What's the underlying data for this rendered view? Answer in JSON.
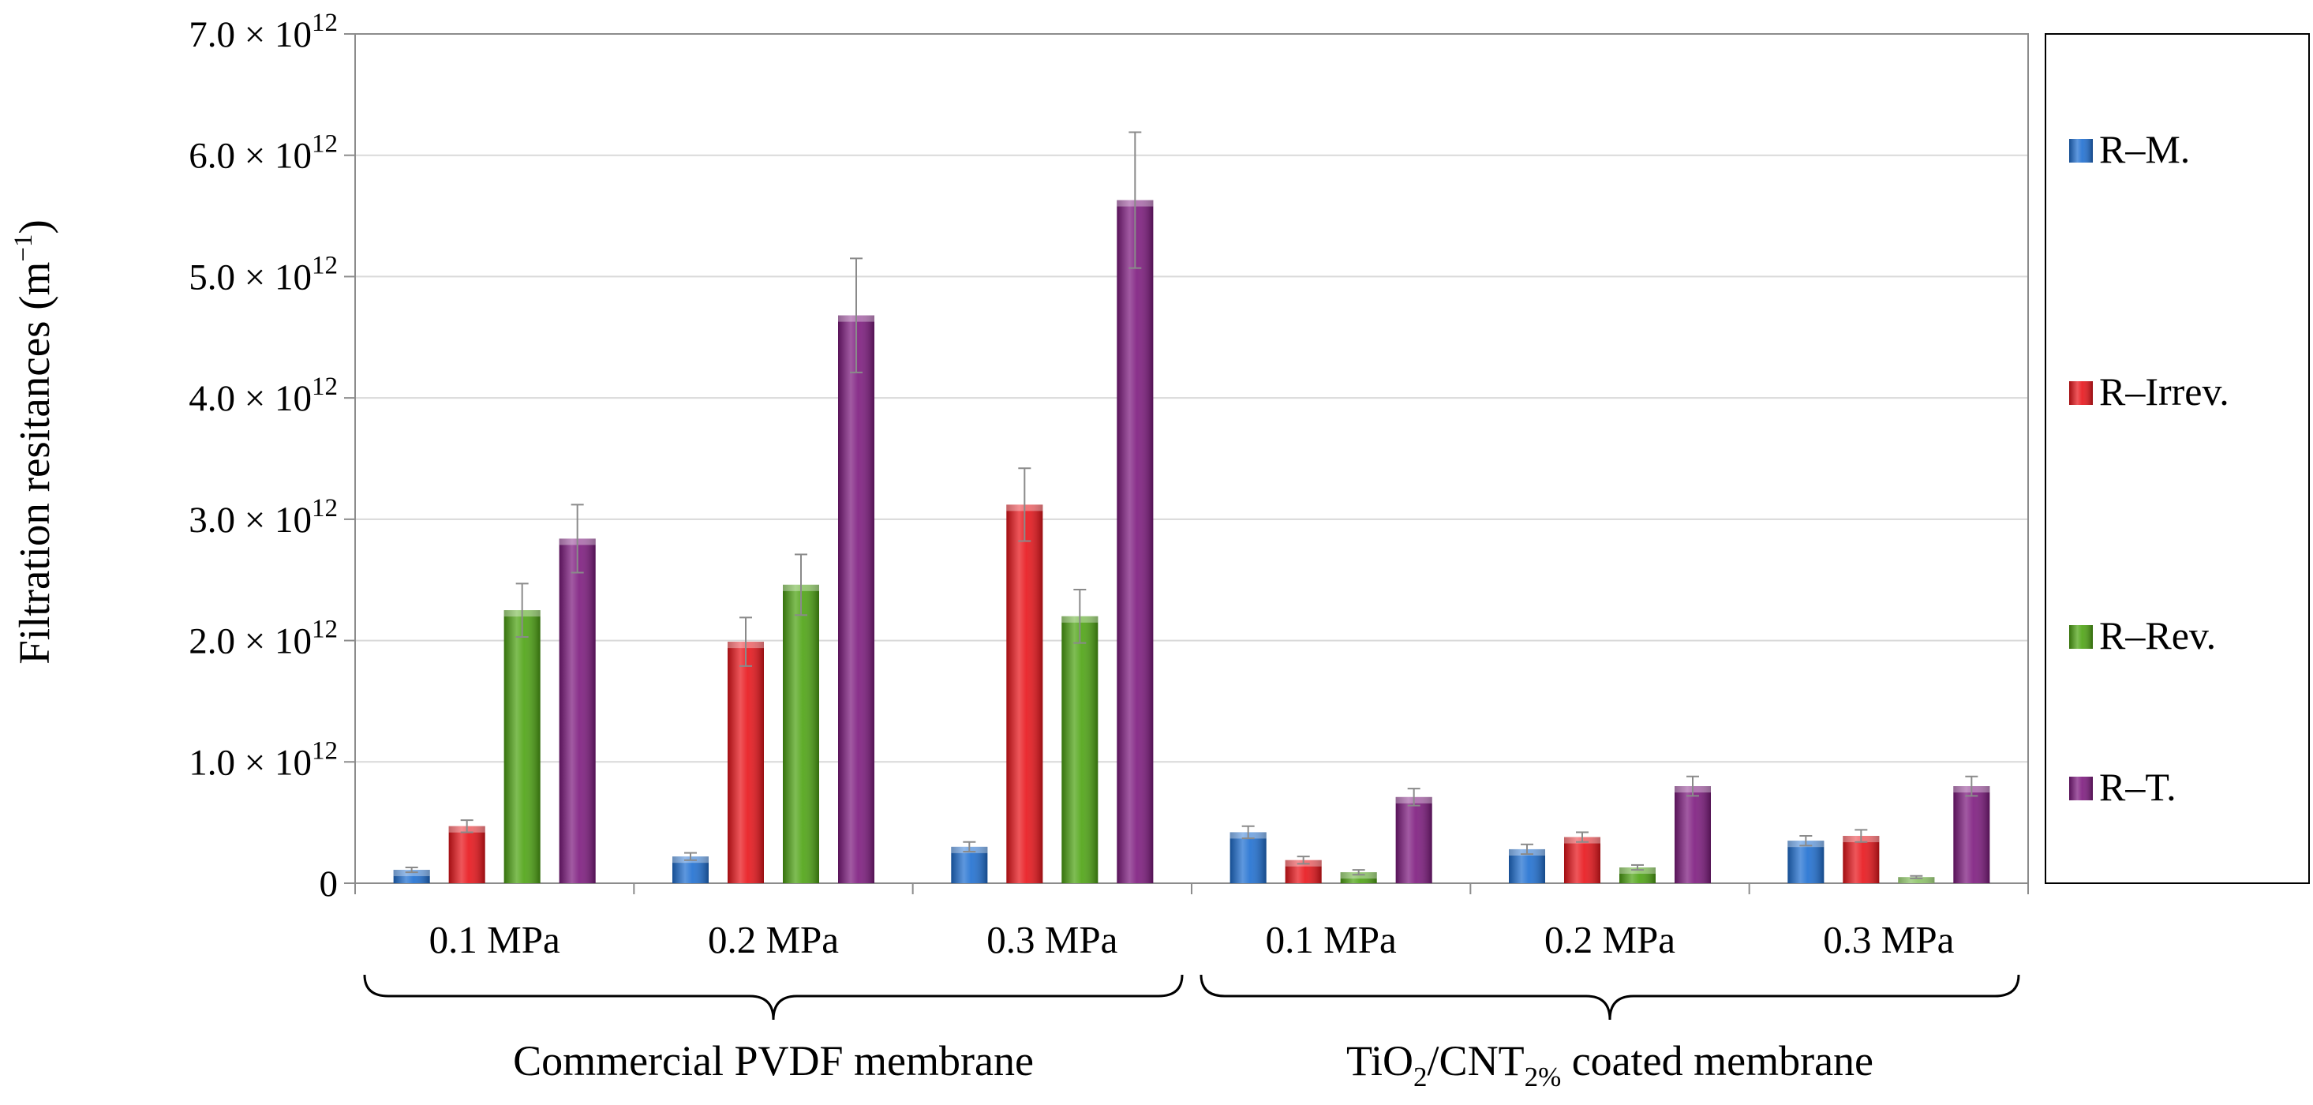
{
  "chart_data": {
    "type": "bar",
    "ylabel": "Filtration resitances (m−1)",
    "ylabel_parts": {
      "main": "Filtration resitances (m",
      "sup": "−1",
      "close": ")"
    },
    "ylim": [
      0,
      7000000000000.0
    ],
    "grid": true,
    "legend_position": "right",
    "y_ticks": [
      {
        "value": 0,
        "label": "0",
        "exp": ""
      },
      {
        "value": 1000000000000.0,
        "label": "1.0 × 10",
        "exp": "12"
      },
      {
        "value": 2000000000000.0,
        "label": "2.0 × 10",
        "exp": "12"
      },
      {
        "value": 3000000000000.0,
        "label": "3.0 × 10",
        "exp": "12"
      },
      {
        "value": 4000000000000.0,
        "label": "4.0 × 10",
        "exp": "12"
      },
      {
        "value": 5000000000000.0,
        "label": "5.0 × 10",
        "exp": "12"
      },
      {
        "value": 6000000000000.0,
        "label": "6.0 × 10",
        "exp": "12"
      },
      {
        "value": 7000000000000.0,
        "label": "7.0 × 10",
        "exp": "12"
      }
    ],
    "categories": [
      "0.1 MPa",
      "0.2 MPa",
      "0.3 MPa",
      "0.1 MPa",
      "0.2 MPa",
      "0.3 MPa"
    ],
    "super_groups": [
      {
        "label": "Commercial PVDF membrane",
        "parts": [
          {
            "t": "Commercial PVDF membrane",
            "s": ""
          }
        ],
        "span": [
          0,
          2
        ]
      },
      {
        "label": "TiO2/CNT2% coated membrane",
        "parts": [
          {
            "t": "TiO",
            "s": ""
          },
          {
            "t": "2",
            "s": "sub"
          },
          {
            "t": "/CNT",
            "s": ""
          },
          {
            "t": "2%",
            "s": "sub"
          },
          {
            "t": " coated membrane",
            "s": ""
          }
        ],
        "span": [
          3,
          5
        ]
      }
    ],
    "series": [
      {
        "name": "R–M.",
        "color": "#1f6fd1",
        "values": [
          110000000000.0,
          220000000000.0,
          300000000000.0,
          420000000000.0,
          280000000000.0,
          350000000000.0
        ],
        "errors": [
          20000000000.0,
          30000000000.0,
          40000000000.0,
          50000000000.0,
          40000000000.0,
          40000000000.0
        ]
      },
      {
        "name": "R–Irrev.",
        "color": "#e8141a",
        "values": [
          470000000000.0,
          1990000000000.0,
          3120000000000.0,
          190000000000.0,
          380000000000.0,
          390000000000.0
        ],
        "errors": [
          50000000000.0,
          200000000000.0,
          300000000000.0,
          30000000000.0,
          40000000000.0,
          50000000000.0
        ]
      },
      {
        "name": "R–Rev.",
        "color": "#4da312",
        "values": [
          2250000000000.0,
          2460000000000.0,
          2200000000000.0,
          90000000000.0,
          130000000000.0,
          50000000000.0
        ],
        "errors": [
          220000000000.0,
          250000000000.0,
          220000000000.0,
          20000000000.0,
          20000000000.0,
          10000000000.0
        ]
      },
      {
        "name": "R–T.",
        "color": "#7d1a7e",
        "values": [
          2840000000000.0,
          4680000000000.0,
          5630000000000.0,
          710000000000.0,
          800000000000.0,
          800000000000.0
        ],
        "errors": [
          280000000000.0,
          470000000000.0,
          560000000000.0,
          70000000000.0,
          80000000000.0,
          80000000000.0
        ]
      }
    ]
  }
}
